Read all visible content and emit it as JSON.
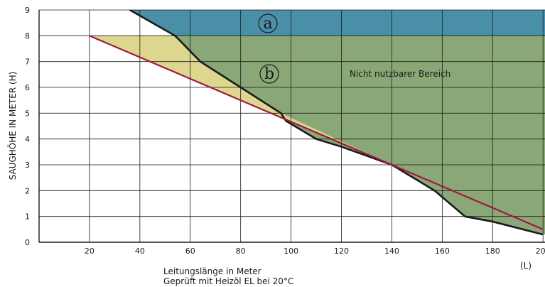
{
  "chart_data": {
    "type": "area",
    "title": "",
    "ylabel": "SAUGHÖHE IN METER (H)",
    "xlabel": "Leitungslänge in Meter",
    "xlabel_sub": "Geprüft mit Heizöl EL bei 20°C",
    "unit_label": "(L)",
    "xlim": [
      0,
      200
    ],
    "ylim": [
      0,
      9
    ],
    "x_ticks": [
      20,
      40,
      60,
      80,
      100,
      120,
      140,
      160,
      180,
      200
    ],
    "x_tick_labels": [
      "20",
      "40",
      "60",
      "80",
      "100",
      "120",
      "140",
      "160",
      "180",
      "200"
    ],
    "y_ticks": [
      0,
      1,
      2,
      3,
      4,
      5,
      6,
      7,
      8,
      9
    ],
    "y_tick_labels": [
      "0",
      "1",
      "2",
      "3",
      "4",
      "5",
      "6",
      "7",
      "8",
      "9"
    ],
    "grid": true,
    "regions": [
      {
        "label": "a",
        "color": "#4a8fa8",
        "y_range": [
          8,
          9
        ]
      },
      {
        "label": "b",
        "color": "#8aa877",
        "text": "Nicht nutzbarer Bereich"
      }
    ],
    "highlight_color": "#ddd68e",
    "series": [
      {
        "color": "#1a1a1a",
        "x": [
          36,
          54,
          64,
          80,
          96,
          98,
          110,
          120,
          140,
          157,
          169,
          180,
          200
        ],
        "y": [
          9,
          8,
          7,
          6,
          5,
          4.7,
          4,
          3.7,
          3,
          2,
          1,
          0.8,
          0.3
        ]
      },
      {
        "color": "#a01840",
        "x": [
          20,
          200
        ],
        "y": [
          8,
          0.5
        ]
      }
    ]
  }
}
